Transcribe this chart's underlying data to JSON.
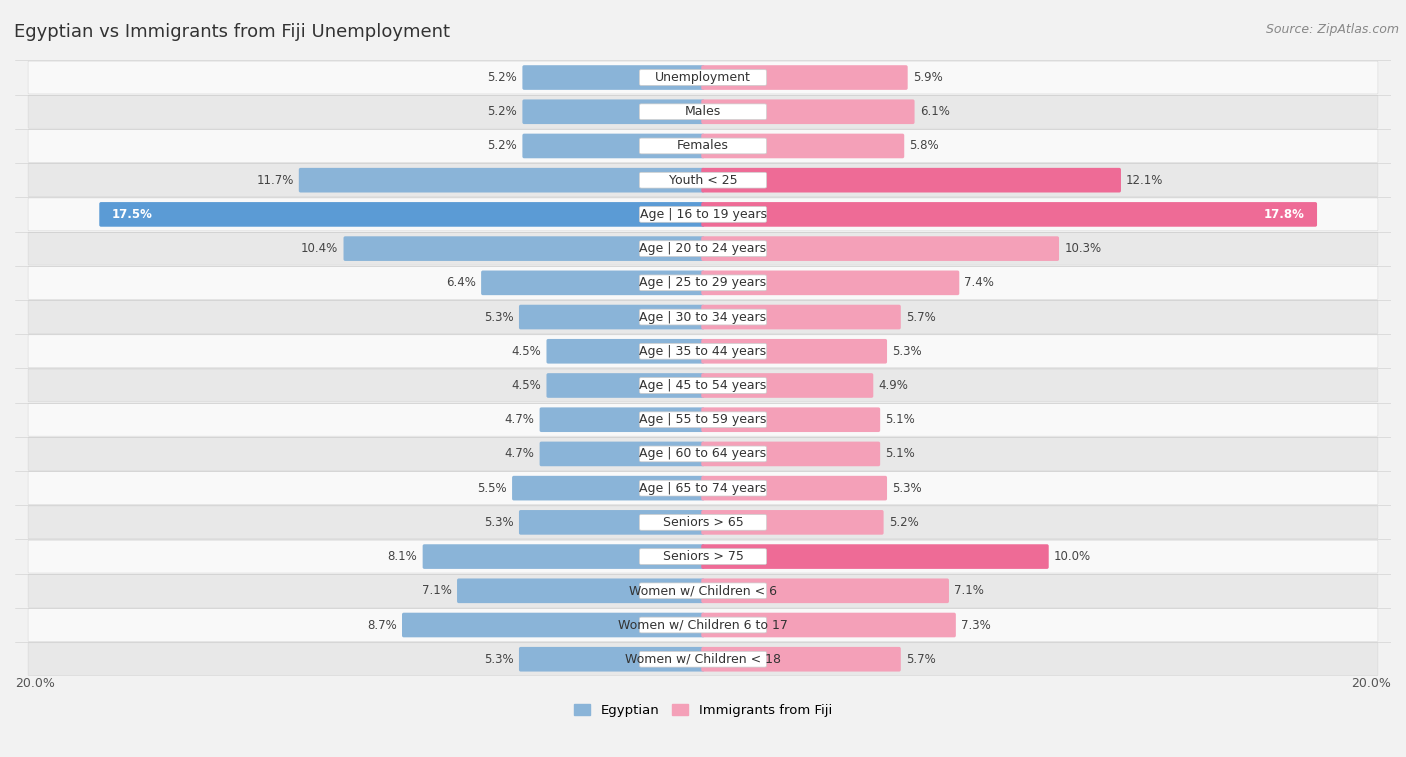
{
  "title": "Egyptian vs Immigrants from Fiji Unemployment",
  "source": "Source: ZipAtlas.com",
  "categories": [
    "Unemployment",
    "Males",
    "Females",
    "Youth < 25",
    "Age | 16 to 19 years",
    "Age | 20 to 24 years",
    "Age | 25 to 29 years",
    "Age | 30 to 34 years",
    "Age | 35 to 44 years",
    "Age | 45 to 54 years",
    "Age | 55 to 59 years",
    "Age | 60 to 64 years",
    "Age | 65 to 74 years",
    "Seniors > 65",
    "Seniors > 75",
    "Women w/ Children < 6",
    "Women w/ Children 6 to 17",
    "Women w/ Children < 18"
  ],
  "egyptian_values": [
    5.2,
    5.2,
    5.2,
    11.7,
    17.5,
    10.4,
    6.4,
    5.3,
    4.5,
    4.5,
    4.7,
    4.7,
    5.5,
    5.3,
    8.1,
    7.1,
    8.7,
    5.3
  ],
  "fiji_values": [
    5.9,
    6.1,
    5.8,
    12.1,
    17.8,
    10.3,
    7.4,
    5.7,
    5.3,
    4.9,
    5.1,
    5.1,
    5.3,
    5.2,
    10.0,
    7.1,
    7.3,
    5.7
  ],
  "egyptian_color": "#8ab4d8",
  "fiji_color": "#f4a0b8",
  "egyptian_highlight": "#5b9bd5",
  "fiji_highlight": "#ee6b96",
  "background_color": "#f2f2f2",
  "row_bg_light": "#f9f9f9",
  "row_bg_dark": "#e8e8e8",
  "max_value": 20.0,
  "axis_label": "20.0%",
  "legend_egyptian": "Egyptian",
  "legend_fiji": "Immigrants from Fiji",
  "title_fontsize": 13,
  "source_fontsize": 9,
  "label_fontsize": 9,
  "value_fontsize": 8.5
}
